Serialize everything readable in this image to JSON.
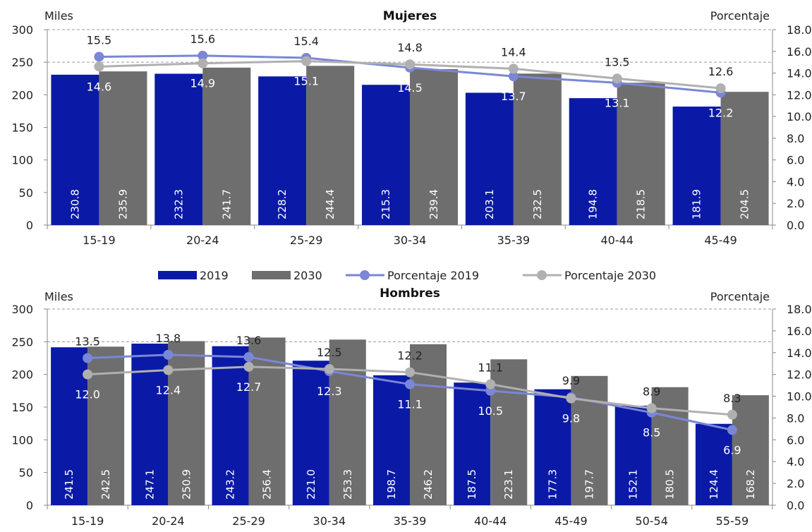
{
  "legend": {
    "items": [
      {
        "label": "2019",
        "kind": "bar",
        "color": "#0A1AA6"
      },
      {
        "label": "2030",
        "kind": "bar",
        "color": "#6E6E6E"
      },
      {
        "label": "Porcentaje 2019",
        "kind": "line",
        "color": "#7A86D6"
      },
      {
        "label": "Porcentaje 2030",
        "kind": "line",
        "color": "#B0B0B0"
      }
    ]
  },
  "chart_data": [
    {
      "type": "bar",
      "title": "Mujeres",
      "ylabel": "Miles",
      "y2label": "Porcentaje",
      "ylim": [
        0,
        300
      ],
      "y2lim": [
        0,
        18
      ],
      "yticks": [
        "0",
        "50",
        "100",
        "150",
        "200",
        "250",
        "300"
      ],
      "y2ticks": [
        "0.0",
        "2.0",
        "4.0",
        "6.0",
        "8.0",
        "10.0",
        "12.0",
        "14.0",
        "16.0",
        "18.0"
      ],
      "categories": [
        "15-19",
        "20-24",
        "25-29",
        "30-34",
        "35-39",
        "40-44",
        "45-49"
      ],
      "series": [
        {
          "name": "2019",
          "kind": "bar",
          "axis": "left",
          "color": "#0A1AA6",
          "values": [
            230.8,
            232.3,
            228.2,
            215.3,
            203.1,
            194.8,
            181.9
          ],
          "labels": [
            "230.8",
            "232.3",
            "228.2",
            "215.3",
            "203.1",
            "194.8",
            "181.9"
          ]
        },
        {
          "name": "2030",
          "kind": "bar",
          "axis": "left",
          "color": "#6E6E6E",
          "values": [
            235.9,
            241.7,
            244.4,
            239.4,
            232.5,
            218.5,
            204.5
          ],
          "labels": [
            "235.9",
            "241.7",
            "244.4",
            "239.4",
            "232.5",
            "218.5",
            "204.5"
          ]
        },
        {
          "name": "Porcentaje 2019",
          "kind": "line",
          "axis": "right",
          "color": "#7A86D6",
          "values": [
            15.5,
            15.6,
            15.4,
            14.5,
            13.7,
            13.1,
            12.2
          ],
          "labels": [
            "15.5",
            "15.6",
            "15.4",
            "14.5",
            "13.7",
            "13.1",
            "12.2"
          ]
        },
        {
          "name": "Porcentaje 2030",
          "kind": "line",
          "axis": "right",
          "color": "#B0B0B0",
          "values": [
            14.6,
            14.9,
            15.1,
            14.8,
            14.4,
            13.5,
            12.6
          ],
          "labels": [
            "14.6",
            "14.9",
            "15.1",
            "14.8",
            "14.4",
            "13.5",
            "12.6"
          ]
        }
      ],
      "gridlines": "dashed, at 250 and 300",
      "legend_position": "bottom"
    },
    {
      "type": "bar",
      "title": "Hombres",
      "ylabel": "Miles",
      "y2label": "Porcentaje",
      "ylim": [
        0,
        300
      ],
      "y2lim": [
        0,
        18
      ],
      "yticks": [
        "0",
        "50",
        "100",
        "150",
        "200",
        "250",
        "300"
      ],
      "y2ticks": [
        "0.0",
        "2.0",
        "4.0",
        "6.0",
        "8.0",
        "10.0",
        "12.0",
        "14.0",
        "16.0",
        "18.0"
      ],
      "categories": [
        "15-19",
        "20-24",
        "25-29",
        "30-34",
        "35-39",
        "40-44",
        "45-49",
        "50-54",
        "55-59"
      ],
      "series": [
        {
          "name": "2019",
          "kind": "bar",
          "axis": "left",
          "color": "#0A1AA6",
          "values": [
            241.5,
            247.1,
            243.2,
            221.0,
            198.7,
            187.5,
            177.3,
            152.1,
            124.4
          ],
          "labels": [
            "241.5",
            "247.1",
            "243.2",
            "221.0",
            "198.7",
            "187.5",
            "177.3",
            "152.1",
            "124.4"
          ]
        },
        {
          "name": "2030",
          "kind": "bar",
          "axis": "left",
          "color": "#6E6E6E",
          "values": [
            242.5,
            250.9,
            256.4,
            253.3,
            246.2,
            223.1,
            197.7,
            180.5,
            168.2
          ],
          "labels": [
            "242.5",
            "250.9",
            "256.4",
            "253.3",
            "246.2",
            "223.1",
            "197.7",
            "180.5",
            "168.2"
          ]
        },
        {
          "name": "Porcentaje 2019",
          "kind": "line",
          "axis": "right",
          "color": "#7A86D6",
          "values": [
            13.5,
            13.8,
            13.6,
            12.3,
            11.1,
            10.5,
            9.9,
            8.5,
            6.9
          ],
          "labels": [
            "13.5",
            "13.8",
            "13.6",
            "12.3",
            "11.1",
            "10.5",
            "9.9",
            "8.5",
            "6.9"
          ]
        },
        {
          "name": "Porcentaje 2030",
          "kind": "line",
          "axis": "right",
          "color": "#B0B0B0",
          "values": [
            12.0,
            12.4,
            12.7,
            12.5,
            12.2,
            11.1,
            9.8,
            8.9,
            8.3
          ],
          "labels": [
            "12.0",
            "12.4",
            "12.7",
            "12.5",
            "12.2",
            "11.1",
            "9.8",
            "8.9",
            "8.3"
          ]
        }
      ],
      "gridlines": "dashed, at 250 and 300",
      "legend_position": "top"
    }
  ]
}
